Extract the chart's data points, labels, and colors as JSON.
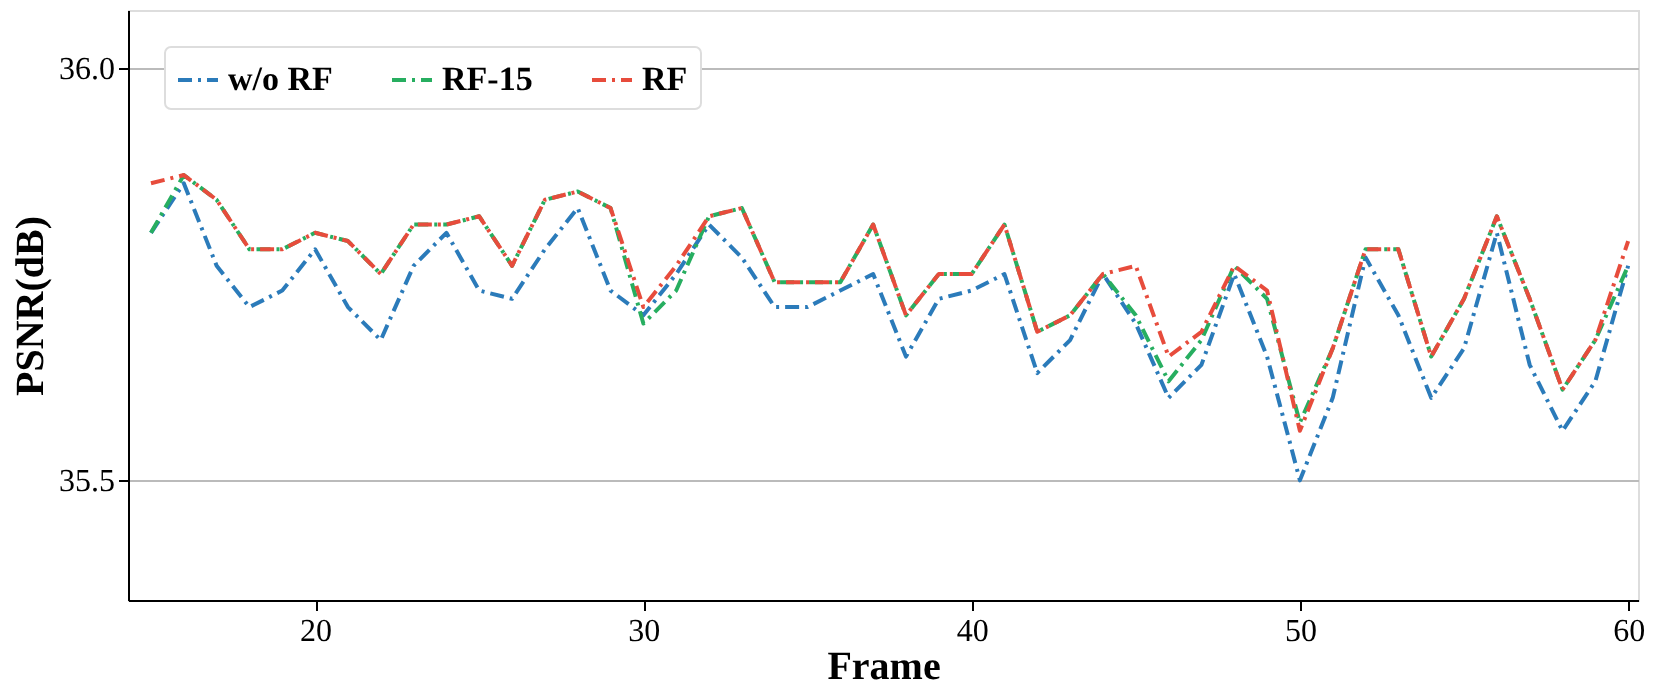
{
  "chart_data": {
    "type": "line",
    "xlabel": "Frame",
    "ylabel": "PSNR(dB)",
    "x": [
      15,
      16,
      17,
      18,
      19,
      20,
      21,
      22,
      23,
      24,
      25,
      26,
      27,
      28,
      29,
      30,
      31,
      32,
      33,
      34,
      35,
      36,
      37,
      38,
      39,
      40,
      41,
      42,
      43,
      44,
      45,
      46,
      47,
      48,
      49,
      50,
      51,
      52,
      53,
      54,
      55,
      56,
      57,
      58,
      59,
      60
    ],
    "series": [
      {
        "name": "w/o RF",
        "color": "#2b7bba",
        "values": [
          35.8,
          35.86,
          35.76,
          35.71,
          35.73,
          35.78,
          35.71,
          35.67,
          35.76,
          35.8,
          35.73,
          35.72,
          35.78,
          35.83,
          35.73,
          35.7,
          35.75,
          35.81,
          35.77,
          35.71,
          35.71,
          35.73,
          35.75,
          35.65,
          35.72,
          35.73,
          35.75,
          35.63,
          35.67,
          35.75,
          35.69,
          35.6,
          35.64,
          35.75,
          35.65,
          35.5,
          35.6,
          35.77,
          35.7,
          35.6,
          35.66,
          35.8,
          35.64,
          35.56,
          35.62,
          35.76
        ]
      },
      {
        "name": "RF-15",
        "color": "#27ae60",
        "values": [
          35.8,
          35.87,
          35.84,
          35.78,
          35.78,
          35.8,
          35.79,
          35.75,
          35.81,
          35.81,
          35.82,
          35.76,
          35.84,
          35.85,
          35.83,
          35.69,
          35.73,
          35.82,
          35.83,
          35.74,
          35.74,
          35.74,
          35.81,
          35.7,
          35.75,
          35.75,
          35.81,
          35.68,
          35.7,
          35.75,
          35.7,
          35.62,
          35.67,
          35.76,
          35.72,
          35.57,
          35.66,
          35.78,
          35.78,
          35.65,
          35.72,
          35.82,
          35.72,
          35.61,
          35.67,
          35.76
        ]
      },
      {
        "name": "RF",
        "color": "#e74c3c",
        "values": [
          35.86,
          35.87,
          35.84,
          35.78,
          35.78,
          35.8,
          35.79,
          35.75,
          35.81,
          35.81,
          35.82,
          35.76,
          35.84,
          35.85,
          35.83,
          35.71,
          35.76,
          35.82,
          35.83,
          35.74,
          35.74,
          35.74,
          35.81,
          35.7,
          35.75,
          35.75,
          35.81,
          35.68,
          35.7,
          35.75,
          35.76,
          35.65,
          35.68,
          35.76,
          35.73,
          35.56,
          35.66,
          35.78,
          35.78,
          35.65,
          35.72,
          35.82,
          35.72,
          35.61,
          35.67,
          35.79
        ]
      }
    ],
    "xlim": [
      14.3,
      60.3
    ],
    "xticks": [
      20,
      30,
      40,
      50,
      60
    ],
    "ylim": [
      35.355,
      36.07
    ],
    "yticks": [
      {
        "value": 35.5,
        "label": "35.5"
      },
      {
        "value": 36.0,
        "label": "36.0"
      }
    ],
    "grid": "y",
    "legend": "top left",
    "line_style": "dashdot",
    "marker": "none"
  }
}
